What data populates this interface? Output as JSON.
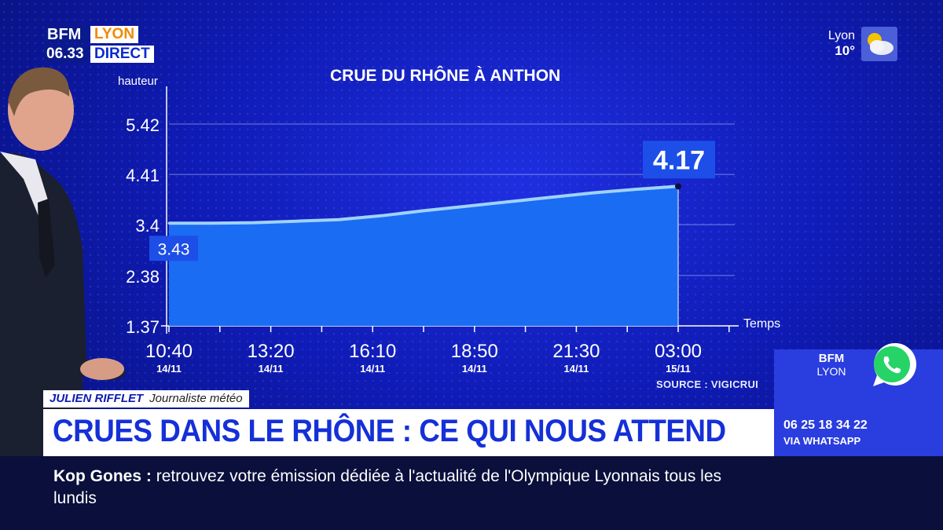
{
  "logo": {
    "brand": "BFM",
    "city": "LYON",
    "time": "06.33",
    "live": "DIRECT"
  },
  "weather": {
    "city": "Lyon",
    "temp": "10°",
    "icon": "cloud-sun-icon"
  },
  "chart_data": {
    "type": "area",
    "title": "CRUE DU RHÔNE À ANTHON",
    "ylabel": "hauteur",
    "xlabel": "Temps",
    "yticks": [
      "5.42",
      "4.41",
      "3.4",
      "2.38",
      "1.37"
    ],
    "ylim": [
      1.37,
      5.42
    ],
    "xticks": [
      {
        "time": "10:40",
        "date": "14/11"
      },
      {
        "time": "13:20",
        "date": "14/11"
      },
      {
        "time": "16:10",
        "date": "14/11"
      },
      {
        "time": "18:50",
        "date": "14/11"
      },
      {
        "time": "21:30",
        "date": "14/11"
      },
      {
        "time": "03:00",
        "date": "15/11"
      }
    ],
    "x": [
      "14/11 10:40",
      "14/11 12:00",
      "14/11 13:20",
      "14/11 14:40",
      "14/11 16:10",
      "14/11 17:30",
      "14/11 18:50",
      "14/11 20:10",
      "14/11 21:30",
      "14/11 23:00",
      "15/11 00:30",
      "15/11 01:45",
      "15/11 03:00"
    ],
    "values": [
      3.43,
      3.43,
      3.44,
      3.47,
      3.5,
      3.58,
      3.68,
      3.77,
      3.86,
      3.95,
      4.04,
      4.11,
      4.17
    ],
    "start_label": "3.43",
    "end_label": "4.17",
    "source": "SOURCE : VIGICRUI",
    "colors": {
      "fill": "#1a6cf2",
      "line": "#9fd2ff",
      "label_bg": "#1d4fe8"
    }
  },
  "lower_third": {
    "name": "JULIEN RIFFLET",
    "role": "Journaliste météo",
    "headline": "CRUES DANS LE RHÔNE : CE QUI NOUS ATTEND"
  },
  "ticker": {
    "show": "Kop Gones",
    "sep": ":",
    "text": "retrouvez votre émission dédiée à l'actualité de l'Olympique Lyonnais tous les lundis"
  },
  "whatsapp": {
    "brand": "BFM",
    "city": "LYON",
    "number": "06 25 18 34 22",
    "via": "VIA WHATSAPP",
    "icon": "whatsapp-icon"
  }
}
